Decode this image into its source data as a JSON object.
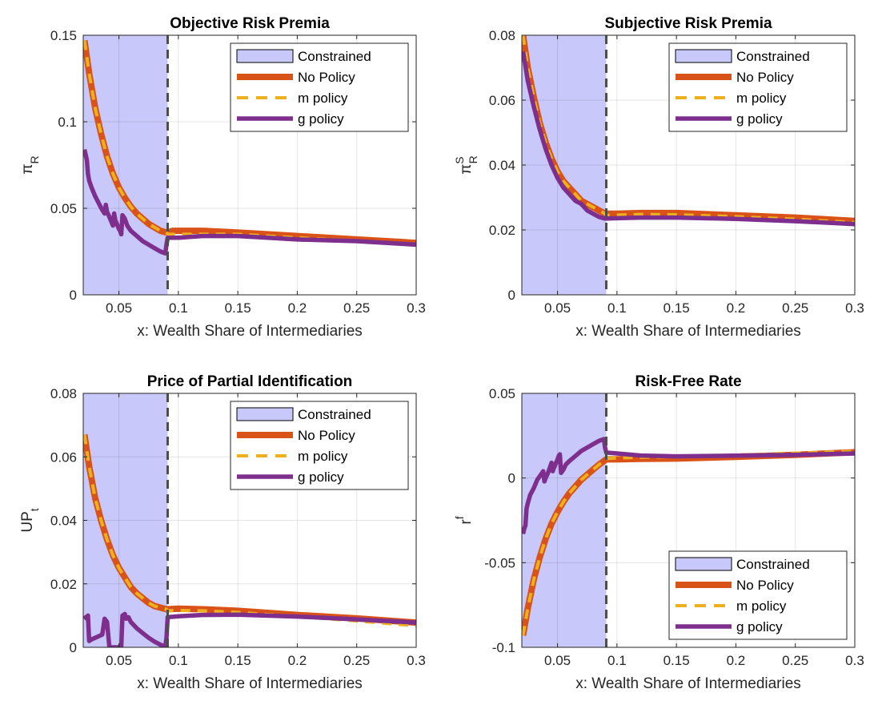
{
  "chart_data": [
    {
      "type": "line",
      "title": "Objective Risk Premia",
      "xlabel": "x: Wealth Share of Intermediaries",
      "ylabel": "π",
      "ylabel_sub": "R",
      "ylabel_sup": "",
      "xlim": [
        0.02,
        0.3
      ],
      "ylim": [
        0,
        0.15
      ],
      "xticks": [
        "0.05",
        "0.1",
        "0.15",
        "0.2",
        "0.25",
        "0.3"
      ],
      "yticks": [
        "0",
        "0.05",
        "0.1",
        "0.15"
      ],
      "grid": true,
      "constraint_region": [
        0.02,
        0.091
      ],
      "threshold_x": 0.091,
      "legend_position": "top-right",
      "series": [
        {
          "name": "No Policy",
          "style": "solid",
          "x": [
            0.021,
            0.025,
            0.03,
            0.035,
            0.04,
            0.045,
            0.05,
            0.055,
            0.06,
            0.065,
            0.07,
            0.075,
            0.08,
            0.085,
            0.09,
            0.091,
            0.095,
            0.1,
            0.12,
            0.15,
            0.2,
            0.25,
            0.3
          ],
          "y": [
            0.147,
            0.128,
            0.108,
            0.093,
            0.08,
            0.07,
            0.062,
            0.056,
            0.051,
            0.047,
            0.044,
            0.041,
            0.039,
            0.037,
            0.036,
            0.036,
            0.037,
            0.037,
            0.037,
            0.036,
            0.034,
            0.032,
            0.03
          ]
        },
        {
          "name": "m policy",
          "style": "dashed",
          "x": [
            0.021,
            0.025,
            0.03,
            0.035,
            0.04,
            0.045,
            0.05,
            0.055,
            0.06,
            0.065,
            0.07,
            0.075,
            0.08,
            0.085,
            0.09,
            0.091,
            0.095,
            0.1,
            0.12,
            0.15,
            0.2,
            0.25,
            0.3
          ],
          "y": [
            0.147,
            0.128,
            0.108,
            0.093,
            0.08,
            0.07,
            0.062,
            0.056,
            0.051,
            0.047,
            0.044,
            0.041,
            0.039,
            0.037,
            0.036,
            0.035,
            0.035,
            0.035,
            0.035,
            0.035,
            0.033,
            0.031,
            0.029
          ]
        },
        {
          "name": "g policy",
          "style": "solid",
          "x": [
            0.021,
            0.022,
            0.023,
            0.024,
            0.025,
            0.027,
            0.03,
            0.033,
            0.036,
            0.038,
            0.039,
            0.04,
            0.042,
            0.045,
            0.046,
            0.047,
            0.05,
            0.051,
            0.052,
            0.053,
            0.055,
            0.057,
            0.06,
            0.065,
            0.07,
            0.075,
            0.08,
            0.085,
            0.089,
            0.09,
            0.091,
            0.092,
            0.1,
            0.12,
            0.15,
            0.2,
            0.25,
            0.3
          ],
          "y": [
            0.084,
            0.081,
            0.078,
            0.07,
            0.066,
            0.062,
            0.057,
            0.053,
            0.049,
            0.047,
            0.052,
            0.048,
            0.045,
            0.04,
            0.047,
            0.043,
            0.038,
            0.037,
            0.035,
            0.046,
            0.044,
            0.04,
            0.037,
            0.034,
            0.031,
            0.029,
            0.027,
            0.025,
            0.024,
            0.029,
            0.033,
            0.033,
            0.033,
            0.034,
            0.034,
            0.032,
            0.031,
            0.029
          ]
        }
      ]
    },
    {
      "type": "line",
      "title": "Subjective Risk Premia",
      "xlabel": "x: Wealth Share of Intermediaries",
      "ylabel": "π",
      "ylabel_sub": "R",
      "ylabel_sup": "S",
      "xlim": [
        0.02,
        0.3
      ],
      "ylim": [
        0,
        0.08
      ],
      "xticks": [
        "0.05",
        "0.1",
        "0.15",
        "0.2",
        "0.25",
        "0.3"
      ],
      "yticks": [
        "0",
        "0.02",
        "0.04",
        "0.06",
        "0.08"
      ],
      "grid": true,
      "constraint_region": [
        0.02,
        0.091
      ],
      "threshold_x": 0.091,
      "legend_position": "top-right",
      "series": [
        {
          "name": "No Policy",
          "style": "solid",
          "x": [
            0.021,
            0.025,
            0.03,
            0.035,
            0.04,
            0.045,
            0.05,
            0.055,
            0.06,
            0.065,
            0.07,
            0.075,
            0.08,
            0.085,
            0.09,
            0.091,
            0.1,
            0.12,
            0.15,
            0.2,
            0.25,
            0.3
          ],
          "y": [
            0.08,
            0.07,
            0.061,
            0.053,
            0.047,
            0.042,
            0.038,
            0.035,
            0.033,
            0.031,
            0.029,
            0.028,
            0.027,
            0.026,
            0.025,
            0.025,
            0.025,
            0.0252,
            0.0252,
            0.0245,
            0.0238,
            0.0228
          ]
        },
        {
          "name": "m policy",
          "style": "dashed",
          "x": [
            0.021,
            0.025,
            0.03,
            0.035,
            0.04,
            0.045,
            0.05,
            0.055,
            0.06,
            0.065,
            0.07,
            0.075,
            0.08,
            0.085,
            0.09,
            0.091,
            0.1,
            0.12,
            0.15,
            0.2,
            0.25,
            0.3
          ],
          "y": [
            0.08,
            0.07,
            0.061,
            0.053,
            0.047,
            0.042,
            0.038,
            0.035,
            0.033,
            0.031,
            0.029,
            0.028,
            0.027,
            0.026,
            0.025,
            0.0245,
            0.0246,
            0.0248,
            0.0247,
            0.0241,
            0.0233,
            0.0223
          ]
        },
        {
          "name": "g policy",
          "style": "solid",
          "x": [
            0.021,
            0.025,
            0.03,
            0.035,
            0.04,
            0.045,
            0.05,
            0.055,
            0.06,
            0.065,
            0.07,
            0.075,
            0.08,
            0.085,
            0.09,
            0.091,
            0.1,
            0.12,
            0.15,
            0.2,
            0.25,
            0.3
          ],
          "y": [
            0.075,
            0.066,
            0.058,
            0.051,
            0.045,
            0.04,
            0.036,
            0.033,
            0.031,
            0.029,
            0.028,
            0.026,
            0.025,
            0.024,
            0.0235,
            0.0235,
            0.0236,
            0.0238,
            0.0238,
            0.0234,
            0.0227,
            0.0218
          ]
        }
      ]
    },
    {
      "type": "line",
      "title": "Price of Partial Identification",
      "xlabel": "x: Wealth Share of Intermediaries",
      "ylabel": "UP",
      "ylabel_sub": "t",
      "ylabel_sup": "",
      "xlim": [
        0.02,
        0.3
      ],
      "ylim": [
        0,
        0.08
      ],
      "xticks": [
        "0.05",
        "0.1",
        "0.15",
        "0.2",
        "0.25",
        "0.3"
      ],
      "yticks": [
        "0",
        "0.02",
        "0.04",
        "0.06",
        "0.08"
      ],
      "grid": true,
      "constraint_region": [
        0.02,
        0.091
      ],
      "threshold_x": 0.091,
      "legend_position": "top-right",
      "series": [
        {
          "name": "No Policy",
          "style": "solid",
          "x": [
            0.021,
            0.025,
            0.03,
            0.035,
            0.04,
            0.045,
            0.05,
            0.055,
            0.06,
            0.065,
            0.07,
            0.075,
            0.08,
            0.085,
            0.09,
            0.091,
            0.1,
            0.12,
            0.15,
            0.2,
            0.25,
            0.3
          ],
          "y": [
            0.067,
            0.057,
            0.047,
            0.04,
            0.034,
            0.029,
            0.025,
            0.022,
            0.019,
            0.017,
            0.0155,
            0.014,
            0.013,
            0.0125,
            0.012,
            0.012,
            0.0122,
            0.012,
            0.0115,
            0.0102,
            0.0091,
            0.0078
          ]
        },
        {
          "name": "m policy",
          "style": "dashed",
          "x": [
            0.021,
            0.025,
            0.03,
            0.035,
            0.04,
            0.045,
            0.05,
            0.055,
            0.06,
            0.065,
            0.07,
            0.075,
            0.08,
            0.085,
            0.09,
            0.091,
            0.1,
            0.12,
            0.15,
            0.2,
            0.25,
            0.3
          ],
          "y": [
            0.067,
            0.057,
            0.047,
            0.04,
            0.034,
            0.029,
            0.025,
            0.022,
            0.019,
            0.017,
            0.0155,
            0.014,
            0.013,
            0.0125,
            0.012,
            0.0115,
            0.0116,
            0.0115,
            0.011,
            0.0097,
            0.0083,
            0.0068
          ]
        },
        {
          "name": "g policy",
          "style": "solid",
          "x": [
            0.021,
            0.023,
            0.024,
            0.025,
            0.027,
            0.03,
            0.033,
            0.036,
            0.038,
            0.04,
            0.042,
            0.045,
            0.047,
            0.05,
            0.052,
            0.053,
            0.055,
            0.056,
            0.058,
            0.06,
            0.065,
            0.07,
            0.075,
            0.08,
            0.085,
            0.089,
            0.09,
            0.091,
            0.1,
            0.12,
            0.15,
            0.2,
            0.25,
            0.3
          ],
          "y": [
            0.01,
            0.009,
            0.01,
            0.002,
            0.0025,
            0.003,
            0.0035,
            0.004,
            0.009,
            0.008,
            0.0,
            0.0,
            0.0,
            0.0,
            0.0,
            0.01,
            0.0105,
            0.009,
            0.0095,
            0.008,
            0.006,
            0.0045,
            0.003,
            0.0018,
            0.0008,
            0.0002,
            0.003,
            0.0095,
            0.0098,
            0.0102,
            0.0103,
            0.0097,
            0.0088,
            0.0078
          ]
        }
      ]
    },
    {
      "type": "line",
      "title": "Risk-Free Rate",
      "xlabel": "x: Wealth Share of Intermediaries",
      "ylabel": "r",
      "ylabel_sub": "",
      "ylabel_sup": "f",
      "xlim": [
        0.02,
        0.3
      ],
      "ylim": [
        -0.1,
        0.05
      ],
      "xticks": [
        "0.05",
        "0.1",
        "0.15",
        "0.2",
        "0.25",
        "0.3"
      ],
      "yticks": [
        "-0.1",
        "-0.05",
        "0",
        "0.05"
      ],
      "grid": true,
      "constraint_region": [
        0.02,
        0.091
      ],
      "threshold_x": 0.091,
      "legend_position": "bottom-right",
      "series": [
        {
          "name": "No Policy",
          "style": "solid",
          "x": [
            0.021,
            0.025,
            0.03,
            0.035,
            0.04,
            0.045,
            0.05,
            0.055,
            0.06,
            0.065,
            0.07,
            0.075,
            0.08,
            0.085,
            0.09,
            0.091,
            0.1,
            0.12,
            0.15,
            0.2,
            0.25,
            0.3
          ],
          "y": [
            -0.093,
            -0.077,
            -0.06,
            -0.047,
            -0.036,
            -0.027,
            -0.02,
            -0.014,
            -0.009,
            -0.005,
            -0.001,
            0.002,
            0.005,
            0.008,
            0.0105,
            0.011,
            0.011,
            0.0113,
            0.0115,
            0.0125,
            0.0137,
            0.0152
          ]
        },
        {
          "name": "m policy",
          "style": "dashed",
          "x": [
            0.021,
            0.025,
            0.03,
            0.035,
            0.04,
            0.045,
            0.05,
            0.055,
            0.06,
            0.065,
            0.07,
            0.075,
            0.08,
            0.085,
            0.09,
            0.091,
            0.1,
            0.12,
            0.15,
            0.2,
            0.25,
            0.3
          ],
          "y": [
            -0.093,
            -0.077,
            -0.06,
            -0.047,
            -0.036,
            -0.027,
            -0.02,
            -0.014,
            -0.009,
            -0.005,
            -0.001,
            0.002,
            0.005,
            0.008,
            0.0105,
            0.0115,
            0.0118,
            0.0122,
            0.0126,
            0.0136,
            0.0147,
            0.0158
          ]
        },
        {
          "name": "g policy",
          "style": "solid",
          "x": [
            0.021,
            0.022,
            0.023,
            0.024,
            0.025,
            0.027,
            0.03,
            0.033,
            0.036,
            0.038,
            0.039,
            0.04,
            0.042,
            0.045,
            0.046,
            0.047,
            0.05,
            0.051,
            0.052,
            0.053,
            0.055,
            0.057,
            0.06,
            0.065,
            0.07,
            0.075,
            0.08,
            0.085,
            0.089,
            0.09,
            0.091,
            0.092,
            0.1,
            0.12,
            0.15,
            0.2,
            0.25,
            0.3
          ],
          "y": [
            -0.033,
            -0.03,
            -0.028,
            -0.018,
            -0.015,
            -0.01,
            -0.006,
            -0.001,
            0.002,
            0.004,
            -0.002,
            0.0,
            0.003,
            0.009,
            0.004,
            0.006,
            0.011,
            0.013,
            0.014,
            0.003,
            0.005,
            0.008,
            0.01,
            0.013,
            0.016,
            0.018,
            0.02,
            0.022,
            0.023,
            0.018,
            0.015,
            0.015,
            0.0145,
            0.0133,
            0.0128,
            0.0132,
            0.0137,
            0.0145
          ]
        }
      ]
    }
  ],
  "legend": {
    "constrained": "Constrained",
    "no_policy": "No Policy",
    "m_policy": "m policy",
    "g_policy": "g policy"
  },
  "colors": {
    "no_policy": "#D95319",
    "m_policy": "#EDB120",
    "g_policy": "#7E2F8E",
    "constrained_fill": "#C8C8FA",
    "threshold_line": "#4D4D4D",
    "grid": "#E6E6E6",
    "axis": "#262626"
  }
}
